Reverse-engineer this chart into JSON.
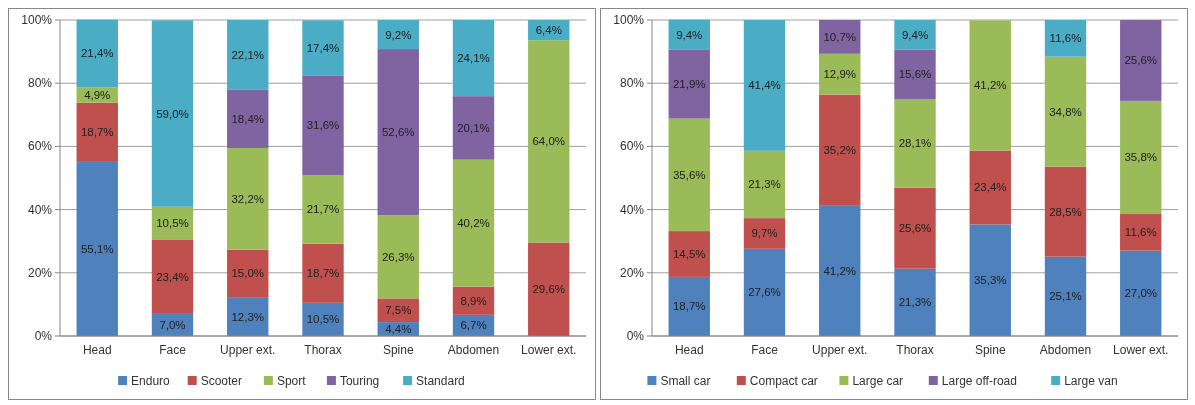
{
  "chart_data": [
    {
      "type": "bar",
      "stacked": true,
      "categories": [
        "Head",
        "Face",
        "Upper ext.",
        "Thorax",
        "Spine",
        "Abdomen",
        "Lower ext."
      ],
      "ylim": [
        0,
        100
      ],
      "yticks": [
        {
          "value": 0,
          "label": "0%"
        },
        {
          "value": 20,
          "label": "20%"
        },
        {
          "value": 40,
          "label": "40%"
        },
        {
          "value": 60,
          "label": "60%"
        },
        {
          "value": 80,
          "label": "80%"
        },
        {
          "value": 100,
          "label": "100%"
        }
      ],
      "grid": "y",
      "legend": "bottom",
      "series": [
        {
          "name": "Enduro",
          "color": "#4f81bd",
          "values": [
            55.1,
            7.0,
            12.3,
            10.5,
            4.4,
            6.7,
            null
          ],
          "value_labels": [
            "55,1%",
            "7,0%",
            "12,3%",
            "10,5%",
            "4,4%",
            "6,7%",
            null
          ]
        },
        {
          "name": "Scooter",
          "color": "#c0504d",
          "values": [
            18.7,
            23.4,
            15.0,
            18.7,
            7.5,
            8.9,
            29.6
          ],
          "value_labels": [
            "18,7%",
            "23,4%",
            "15,0%",
            "18,7%",
            "7,5%",
            "8,9%",
            "29,6%"
          ]
        },
        {
          "name": "Sport",
          "color": "#9bbb59",
          "values": [
            4.9,
            10.5,
            32.2,
            21.7,
            26.3,
            40.2,
            64.0
          ],
          "value_labels": [
            "4,9%",
            "10,5%",
            "32,2%",
            "21,7%",
            "26,3%",
            "40,2%",
            "64,0%"
          ]
        },
        {
          "name": "Touring",
          "color": "#8064a2",
          "values": [
            null,
            null,
            18.4,
            31.6,
            52.6,
            20.1,
            null
          ],
          "value_labels": [
            null,
            null,
            "18,4%",
            "31,6%",
            "52,6%",
            "20,1%",
            null
          ]
        },
        {
          "name": "Standard",
          "color": "#4bacc6",
          "values": [
            21.4,
            59.0,
            22.1,
            17.4,
            9.2,
            24.1,
            6.4
          ],
          "value_labels": [
            "21,4%",
            "59,0%",
            "22,1%",
            "17,4%",
            "9,2%",
            "24,1%",
            "6,4%"
          ]
        }
      ]
    },
    {
      "type": "bar",
      "stacked": true,
      "categories": [
        "Head",
        "Face",
        "Upper ext.",
        "Thorax",
        "Spine",
        "Abdomen",
        "Lower ext."
      ],
      "ylim": [
        0,
        100
      ],
      "yticks": [
        {
          "value": 0,
          "label": "0%"
        },
        {
          "value": 20,
          "label": "20%"
        },
        {
          "value": 40,
          "label": "40%"
        },
        {
          "value": 60,
          "label": "60%"
        },
        {
          "value": 80,
          "label": "80%"
        },
        {
          "value": 100,
          "label": "100%"
        }
      ],
      "grid": "y",
      "legend": "bottom",
      "series": [
        {
          "name": "Small car",
          "color": "#4f81bd",
          "values": [
            18.7,
            27.6,
            41.2,
            21.3,
            35.3,
            25.1,
            27.0
          ],
          "value_labels": [
            "18,7%",
            "27,6%",
            "41,2%",
            "21,3%",
            "35,3%",
            "25,1%",
            "27,0%"
          ]
        },
        {
          "name": "Compact car",
          "color": "#c0504d",
          "values": [
            14.5,
            9.7,
            35.2,
            25.6,
            23.4,
            28.5,
            11.6
          ],
          "value_labels": [
            "14,5%",
            "9,7%",
            "35,2%",
            "25,6%",
            "23,4%",
            "28,5%",
            "11,6%"
          ]
        },
        {
          "name": "Large car",
          "color": "#9bbb59",
          "values": [
            35.6,
            21.3,
            12.9,
            28.1,
            41.2,
            34.8,
            35.8
          ],
          "value_labels": [
            "35,6%",
            "21,3%",
            "12,9%",
            "28,1%",
            "41,2%",
            "34,8%",
            "35,8%"
          ]
        },
        {
          "name": "Large off-road",
          "color": "#8064a2",
          "values": [
            21.9,
            null,
            10.7,
            15.6,
            null,
            null,
            25.6
          ],
          "value_labels": [
            "21,9%",
            null,
            "10,7%",
            "15,6%",
            null,
            null,
            "25,6%"
          ]
        },
        {
          "name": "Large van",
          "color": "#4bacc6",
          "values": [
            9.4,
            41.4,
            null,
            9.4,
            null,
            11.6,
            null
          ],
          "value_labels": [
            "9,4%",
            "41,4%",
            null,
            "9,4%",
            null,
            "11,6%",
            null
          ]
        }
      ]
    }
  ]
}
